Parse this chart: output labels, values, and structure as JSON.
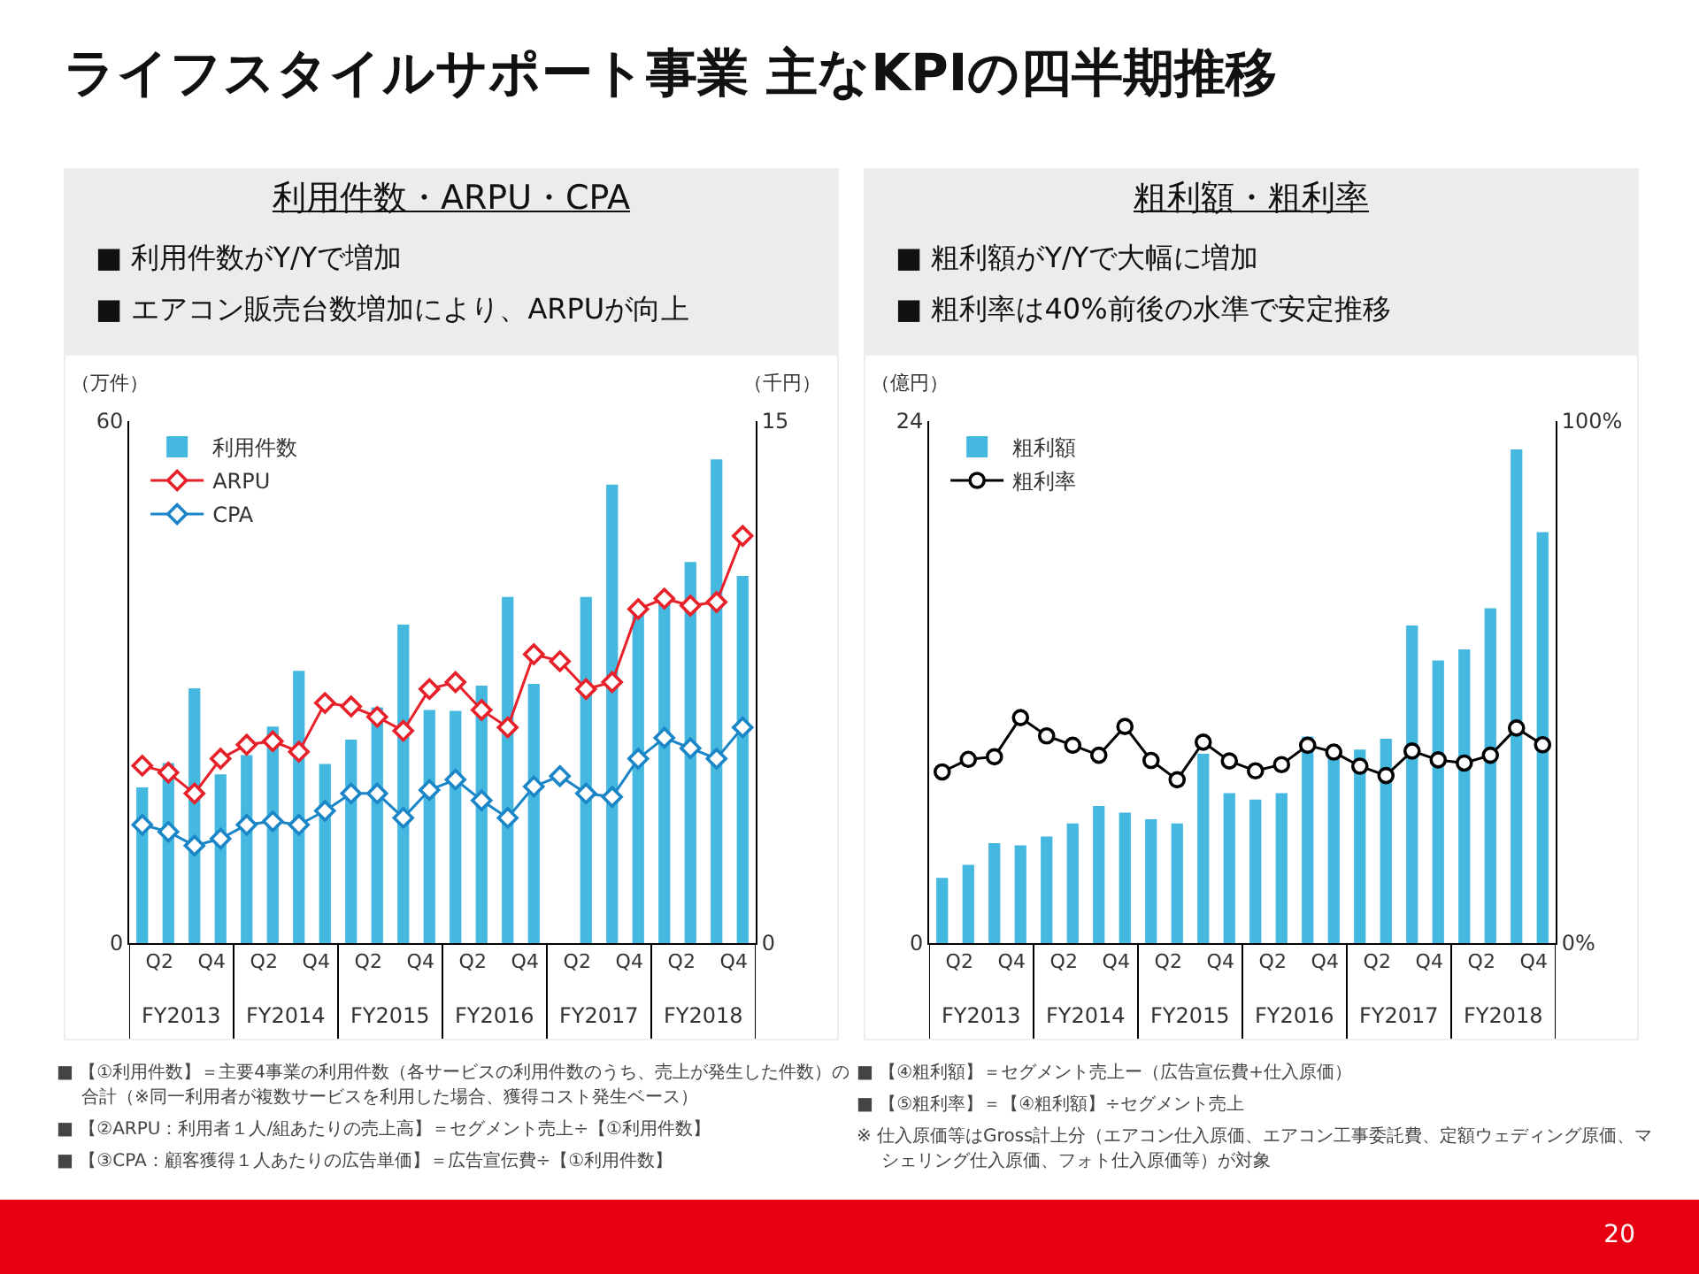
{
  "chart_data": [
    {
      "type": "other",
      "title": "ライフスタイルサポート事業 主なKPIの四半期推移",
      "annotations": [
        "20"
      ]
    },
    {
      "type": "bar",
      "title": "利用件数・ARPU・CPA",
      "subtitle": "■ 利用件数がY/Yで増加\n■ エアコン販売台数増加により、ARPUが向上",
      "ylabel": "（万件）",
      "y2label": "（千円）",
      "categories": [
        null,
        "Q2",
        null,
        "Q4",
        null,
        "Q2",
        null,
        "Q4",
        null,
        "Q2",
        null,
        "Q4",
        null,
        "Q2",
        null,
        "Q4",
        null,
        "Q2",
        null,
        "Q4",
        null,
        "Q2",
        null,
        "Q4"
      ],
      "series": [
        {
          "name": "利用件数",
          "type": "bar",
          "color": "#45b8e0",
          "values": [
            17.9,
            20.7,
            29.3,
            19.4,
            21.6,
            24.9,
            31.3,
            20.6,
            23.4,
            27.1,
            36.6,
            26.8,
            26.7,
            29.6,
            39.8,
            29.8,
            null,
            39.8,
            52.7,
            38.2,
            39.2,
            43.8,
            55.6,
            42.2
          ]
        },
        {
          "name": "ARPU",
          "type": "line",
          "axis": "y2",
          "color": "#e8202a",
          "values": [
            5.1,
            4.9,
            4.3,
            5.3,
            5.7,
            5.8,
            5.5,
            6.9,
            6.8,
            6.5,
            6.1,
            7.3,
            7.5,
            6.7,
            6.2,
            8.3,
            8.1,
            7.3,
            7.5,
            9.6,
            9.9,
            9.7,
            9.8,
            11.7
          ]
        },
        {
          "name": "CPA",
          "type": "line",
          "axis": "y2",
          "color": "#1a86c7",
          "values": [
            3.4,
            3.2,
            2.8,
            3.0,
            3.4,
            3.5,
            3.4,
            3.8,
            4.3,
            4.3,
            3.6,
            4.4,
            4.7,
            4.1,
            3.6,
            4.5,
            4.8,
            4.3,
            4.2,
            5.3,
            5.9,
            5.6,
            5.3,
            6.2
          ]
        }
      ],
      "ylim": [
        0,
        60
      ],
      "yticks": [
        0,
        60
      ],
      "y2lim": [
        0,
        15
      ],
      "y2ticks": [
        0,
        15
      ],
      "legend": "top left",
      "marker": "diamond",
      "line_style": "solid",
      "annotations": [
        "FY2013",
        "FY2014",
        "FY2015",
        "FY2016",
        "FY2017",
        "FY2018",
        "■ 【①利用件数】＝主要4事業の利用件数（各サービスの利用件数のうち、売上が発生した件数）の合計（※同一利用者が複数サービスを利用した場合、獲得コスト発生ベース）",
        "■ 【②ARPU：利用者１人/組あたりの売上高】＝セグメント売上÷【①利用件数】",
        "■ 【③CPA：顧客獲得１人あたりの広告単価】＝広告宣伝費÷【①利用件数】"
      ]
    },
    {
      "type": "bar",
      "title": "粗利額・粗利率",
      "subtitle": "■ 粗利額がY/Yで大幅に増加\n■ 粗利率は40%前後の水準で安定推移",
      "ylabel": "（億円）",
      "categories": [
        null,
        "Q2",
        null,
        "Q4",
        null,
        "Q2",
        null,
        "Q4",
        null,
        "Q2",
        null,
        "Q4",
        null,
        "Q2",
        null,
        "Q4",
        null,
        "Q2",
        null,
        "Q4",
        null,
        "Q2",
        null,
        "Q4"
      ],
      "series": [
        {
          "name": "粗利額",
          "type": "bar",
          "color": "#45b8e0",
          "values": [
            3.0,
            3.6,
            4.6,
            4.5,
            4.9,
            5.5,
            6.3,
            6.0,
            5.7,
            5.5,
            8.7,
            6.9,
            6.6,
            6.9,
            9.5,
            9.1,
            8.9,
            9.4,
            14.6,
            13.0,
            13.5,
            15.4,
            22.7,
            18.9
          ]
        },
        {
          "name": "粗利率",
          "type": "line",
          "axis": "y2",
          "color": "#000000",
          "values": [
            32.8,
            35.2,
            35.7,
            43.2,
            39.7,
            37.9,
            36.0,
            41.5,
            35.0,
            31.3,
            38.5,
            34.9,
            33.0,
            34.2,
            37.9,
            36.6,
            33.9,
            32.1,
            36.8,
            35.1,
            34.5,
            36.0,
            41.2,
            38.0
          ]
        }
      ],
      "ylim": [
        0,
        24
      ],
      "yticks": [
        0,
        24
      ],
      "y2lim": [
        0,
        100
      ],
      "y2ticks": [
        {
          "value": 0,
          "label": "0%"
        },
        {
          "value": 100,
          "label": "100%"
        }
      ],
      "legend": "top left",
      "marker": "circle",
      "line_style": "solid",
      "annotations": [
        "FY2013",
        "FY2014",
        "FY2015",
        "FY2016",
        "FY2017",
        "FY2018",
        "■ 【④粗利額】＝セグメント売上ー（広告宣伝費+仕入原価）",
        "■ 【⑤粗利率】＝【④粗利額】÷セグメント売上",
        "※ 仕入原価等はGross計上分（エアコン仕入原価、エアコン工事委託費、定額ウェディング原価、マシェリング仕入原価、フォト仕入原価等）が対象"
      ]
    }
  ]
}
